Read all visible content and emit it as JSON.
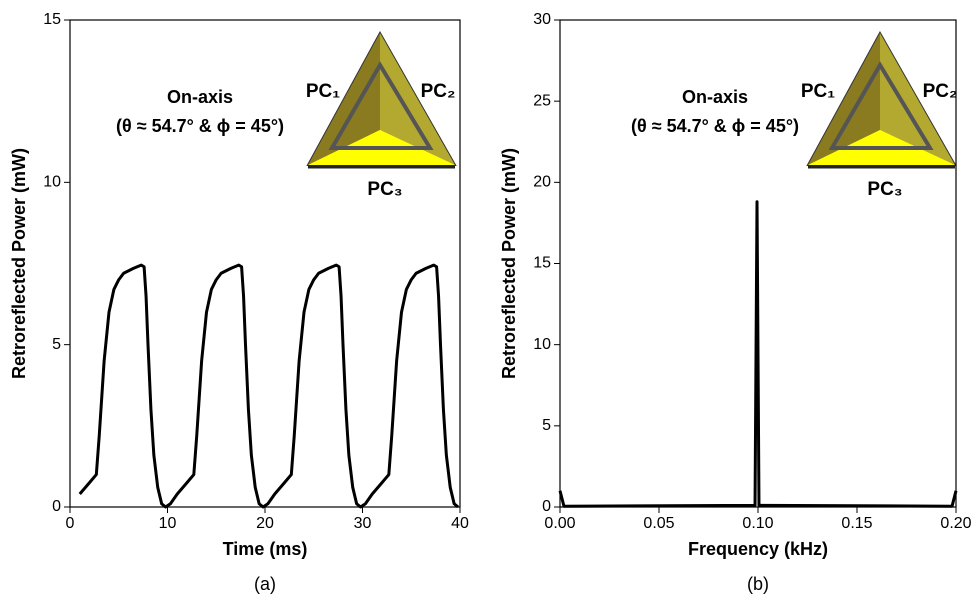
{
  "chart_data": [
    {
      "type": "line",
      "xlabel": "Time (ms)",
      "ylabel": "Retroreflected Power (mW)",
      "panel_label": "(a)",
      "annotation_line1": "On-axis",
      "annotation_line2": "(θ ≈ 54.7° & ϕ = 45°)",
      "labels": [
        "PC₁",
        "PC₂",
        "PC₃"
      ],
      "color": "#000000",
      "xlim": [
        0,
        40
      ],
      "ylim": [
        0,
        15
      ],
      "xticks": [
        0,
        10,
        20,
        30,
        40
      ],
      "yticks": [
        0,
        5,
        10,
        15
      ],
      "x": [
        1.0,
        2.0,
        2.7,
        3.0,
        3.5,
        4.0,
        4.5,
        5.0,
        5.5,
        6.5,
        7.3,
        7.6,
        7.8,
        8.0,
        8.3,
        8.6,
        9.0,
        9.4,
        9.8,
        10.3,
        11.0,
        12.0,
        12.7,
        13.0,
        13.5,
        14.0,
        14.5,
        15.0,
        15.5,
        16.5,
        17.3,
        17.6,
        17.8,
        18.0,
        18.3,
        18.6,
        19.0,
        19.4,
        19.8,
        20.3,
        21.0,
        22.0,
        22.7,
        23.0,
        23.5,
        24.0,
        24.5,
        25.0,
        25.5,
        26.5,
        27.3,
        27.6,
        27.8,
        28.0,
        28.3,
        28.6,
        29.0,
        29.4,
        29.8,
        30.3,
        31.0,
        32.0,
        32.7,
        33.0,
        33.5,
        34.0,
        34.5,
        35.0,
        35.5,
        36.5,
        37.3,
        37.6,
        37.8,
        38.0,
        38.3,
        38.6,
        39.0,
        39.4,
        39.8
      ],
      "values": [
        0.4,
        0.75,
        1.0,
        2.2,
        4.5,
        6.0,
        6.7,
        7.0,
        7.2,
        7.35,
        7.45,
        7.4,
        6.5,
        5.0,
        3.0,
        1.6,
        0.6,
        0.1,
        0.0,
        0.1,
        0.4,
        0.75,
        1.0,
        2.2,
        4.5,
        6.0,
        6.7,
        7.0,
        7.2,
        7.35,
        7.45,
        7.4,
        6.5,
        5.0,
        3.0,
        1.6,
        0.6,
        0.1,
        0.0,
        0.1,
        0.4,
        0.75,
        1.0,
        2.2,
        4.5,
        6.0,
        6.7,
        7.0,
        7.2,
        7.35,
        7.45,
        7.4,
        6.5,
        5.0,
        3.0,
        1.6,
        0.6,
        0.1,
        0.0,
        0.1,
        0.4,
        0.75,
        1.0,
        2.2,
        4.5,
        6.0,
        6.7,
        7.0,
        7.2,
        7.35,
        7.45,
        7.4,
        6.5,
        5.0,
        3.0,
        1.6,
        0.6,
        0.1,
        0.0
      ]
    },
    {
      "type": "line",
      "xlabel": "Frequency (kHz)",
      "ylabel": "Retroreflected Power (mW)",
      "panel_label": "(b)",
      "annotation_line1": "On-axis",
      "annotation_line2": "(θ ≈ 54.7° & ϕ = 45°)",
      "labels": [
        "PC₁",
        "PC₂",
        "PC₃"
      ],
      "color": "#000000",
      "xlim": [
        0,
        0.2
      ],
      "ylim": [
        0,
        30
      ],
      "xticks": [
        {
          "value": 0,
          "label": "0.00"
        },
        {
          "value": 0.05,
          "label": "0.05"
        },
        {
          "value": 0.1,
          "label": "0.10"
        },
        {
          "value": 0.15,
          "label": "0.15"
        },
        {
          "value": 0.2,
          "label": "0.20"
        }
      ],
      "yticks": [
        0,
        5,
        10,
        15,
        20,
        25,
        30
      ],
      "x": [
        0.0,
        0.002,
        0.0985,
        0.0995,
        0.1005,
        0.198,
        0.2
      ],
      "values": [
        1.0,
        0.05,
        0.1,
        18.8,
        0.1,
        0.05,
        1.0
      ]
    }
  ]
}
